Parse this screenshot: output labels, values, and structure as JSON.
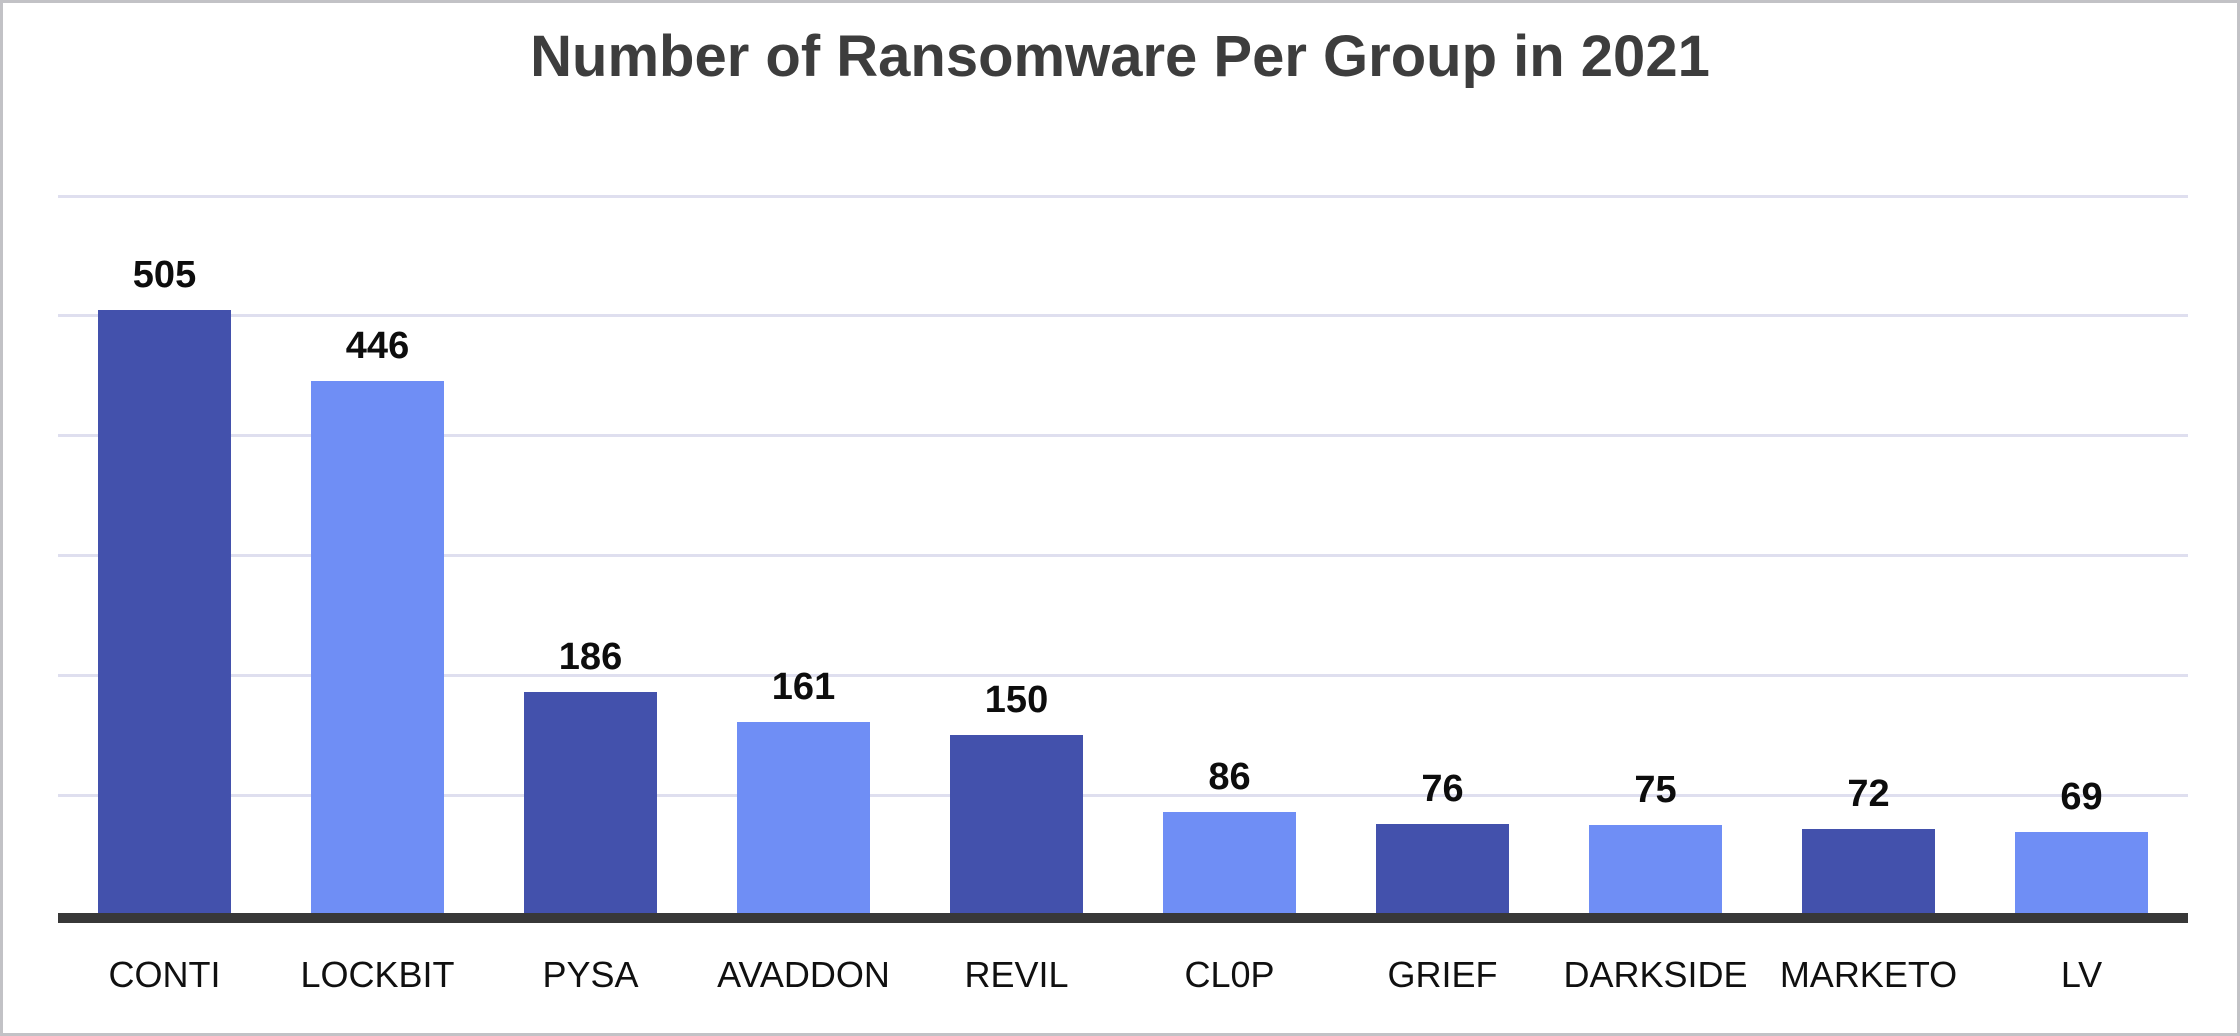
{
  "title": "Number of Ransomware Per Group in 2021",
  "chart_data": {
    "type": "bar",
    "title": "Number of Ransomware Per Group in 2021",
    "categories": [
      "CONTI",
      "LOCKBIT",
      "PYSA",
      "AVADDON",
      "REVIL",
      "CL0P",
      "GRIEF",
      "DARKSIDE",
      "MARKETO",
      "LV"
    ],
    "values": [
      505,
      446,
      186,
      161,
      150,
      86,
      76,
      75,
      72,
      69
    ],
    "value_labels": [
      "505",
      "446",
      "186",
      "161",
      "150",
      "86",
      "76",
      "75",
      "72",
      "69"
    ],
    "xlabel": "",
    "ylabel": "",
    "ylim": [
      0,
      600
    ],
    "gridline_step": 100,
    "grid": "horizontal-only",
    "legend": "none",
    "y_tick_labels_visible": false,
    "bar_color_pattern": "alternating"
  },
  "colors": {
    "dark_bar": "#4351ac",
    "light_bar": "#6f8ef5",
    "gridline": "#dfdfef",
    "axis_line": "#383838",
    "title_text": "#3d3d3d",
    "label_text": "#0d0d0d",
    "frame_border": "#c2c2c6",
    "background": "#ffffff"
  }
}
